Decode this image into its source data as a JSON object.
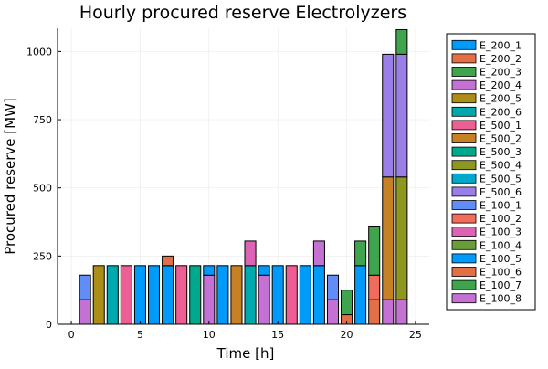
{
  "chart_data": {
    "type": "bar",
    "stacked": true,
    "title": "Hourly procured reserve Electrolyzers",
    "xlabel": "Time [h]",
    "ylabel": "Procured reserve [MW]",
    "xlim": [
      -1,
      26
    ],
    "ylim": [
      0,
      1085
    ],
    "xticks": [
      0,
      5,
      10,
      15,
      20,
      25
    ],
    "yticks": [
      0,
      250,
      500,
      750,
      1000
    ],
    "grid": true,
    "legend_position": "right",
    "hours": [
      1,
      2,
      3,
      4,
      5,
      6,
      7,
      8,
      9,
      10,
      11,
      12,
      13,
      14,
      15,
      16,
      17,
      18,
      19,
      20,
      21,
      22,
      23,
      24
    ],
    "series": [
      {
        "name": "E_200_1",
        "color": "#009AFA",
        "values": [
          0,
          0,
          0,
          0,
          215,
          215,
          215,
          0,
          0,
          0,
          0,
          0,
          0,
          0,
          0,
          0,
          0,
          215,
          0,
          0,
          0,
          0,
          0,
          0
        ]
      },
      {
        "name": "E_200_2",
        "color": "#E36F47",
        "values": [
          0,
          0,
          0,
          0,
          0,
          0,
          35,
          0,
          0,
          0,
          0,
          0,
          0,
          0,
          0,
          0,
          0,
          0,
          0,
          35,
          0,
          90,
          0,
          0
        ]
      },
      {
        "name": "E_200_3",
        "color": "#3EA44E",
        "values": [
          0,
          0,
          0,
          0,
          0,
          0,
          0,
          0,
          0,
          0,
          0,
          0,
          0,
          0,
          0,
          0,
          0,
          0,
          0,
          0,
          0,
          0,
          0,
          0
        ]
      },
      {
        "name": "E_200_4",
        "color": "#C371D2",
        "values": [
          90,
          0,
          0,
          0,
          0,
          0,
          0,
          0,
          0,
          180,
          0,
          0,
          0,
          180,
          0,
          0,
          0,
          90,
          90,
          0,
          0,
          0,
          90,
          90
        ]
      },
      {
        "name": "E_200_5",
        "color": "#AC8D18",
        "values": [
          0,
          215,
          0,
          0,
          0,
          0,
          0,
          0,
          0,
          0,
          0,
          0,
          0,
          0,
          0,
          0,
          0,
          0,
          0,
          0,
          0,
          0,
          0,
          0
        ]
      },
      {
        "name": "E_200_6",
        "color": "#00A9AD",
        "values": [
          0,
          0,
          215,
          0,
          0,
          0,
          0,
          0,
          0,
          0,
          0,
          0,
          215,
          0,
          0,
          0,
          0,
          0,
          0,
          0,
          0,
          0,
          0,
          0
        ]
      },
      {
        "name": "E_500_1",
        "color": "#ED5E93",
        "values": [
          0,
          0,
          0,
          215,
          0,
          0,
          0,
          215,
          0,
          0,
          0,
          0,
          0,
          0,
          0,
          215,
          0,
          0,
          0,
          0,
          0,
          0,
          0,
          0
        ]
      },
      {
        "name": "E_500_2",
        "color": "#C68125",
        "values": [
          0,
          0,
          0,
          0,
          0,
          0,
          0,
          0,
          0,
          0,
          0,
          215,
          0,
          0,
          0,
          0,
          0,
          0,
          0,
          0,
          0,
          0,
          450,
          0
        ]
      },
      {
        "name": "E_500_3",
        "color": "#00A98D",
        "values": [
          0,
          0,
          0,
          0,
          0,
          0,
          0,
          0,
          215,
          0,
          0,
          0,
          0,
          0,
          0,
          0,
          0,
          0,
          0,
          0,
          0,
          0,
          0,
          0
        ]
      },
      {
        "name": "E_500_4",
        "color": "#8E971E",
        "values": [
          0,
          0,
          0,
          0,
          0,
          0,
          0,
          0,
          0,
          0,
          0,
          0,
          0,
          0,
          0,
          0,
          0,
          0,
          0,
          0,
          0,
          0,
          0,
          450
        ]
      },
      {
        "name": "E_500_5",
        "color": "#00A8CB",
        "values": [
          0,
          0,
          0,
          0,
          0,
          0,
          0,
          0,
          0,
          0,
          0,
          0,
          0,
          0,
          0,
          0,
          0,
          0,
          0,
          0,
          0,
          0,
          0,
          0
        ]
      },
      {
        "name": "E_500_6",
        "color": "#9B7FE9",
        "values": [
          0,
          0,
          0,
          0,
          0,
          0,
          0,
          0,
          0,
          0,
          0,
          0,
          0,
          0,
          0,
          0,
          0,
          0,
          0,
          0,
          0,
          0,
          450,
          450
        ]
      },
      {
        "name": "E_100_1",
        "color": "#618DF6",
        "values": [
          90,
          0,
          0,
          0,
          0,
          0,
          0,
          0,
          0,
          0,
          0,
          0,
          0,
          0,
          0,
          0,
          0,
          0,
          90,
          0,
          0,
          0,
          0,
          0
        ]
      },
      {
        "name": "E_100_2",
        "color": "#F16C5D",
        "values": [
          0,
          0,
          0,
          0,
          0,
          0,
          0,
          0,
          0,
          0,
          0,
          0,
          0,
          0,
          0,
          0,
          0,
          0,
          0,
          0,
          0,
          90,
          0,
          0
        ]
      },
      {
        "name": "E_100_3",
        "color": "#DD64B5",
        "values": [
          0,
          0,
          0,
          0,
          0,
          0,
          0,
          0,
          0,
          0,
          0,
          0,
          90,
          0,
          0,
          0,
          0,
          0,
          0,
          0,
          0,
          0,
          0,
          0
        ]
      },
      {
        "name": "E_100_4",
        "color": "#6B9D3A",
        "values": [
          0,
          0,
          0,
          0,
          0,
          0,
          0,
          0,
          0,
          0,
          0,
          0,
          0,
          0,
          0,
          0,
          0,
          0,
          0,
          0,
          0,
          0,
          0,
          0
        ]
      },
      {
        "name": "E_100_5",
        "color": "#009AFA",
        "values": [
          0,
          0,
          0,
          0,
          0,
          0,
          0,
          0,
          0,
          35,
          215,
          0,
          0,
          35,
          215,
          0,
          215,
          0,
          0,
          0,
          215,
          0,
          0,
          0
        ]
      },
      {
        "name": "E_100_6",
        "color": "#E36F47",
        "values": [
          0,
          0,
          0,
          0,
          0,
          0,
          0,
          0,
          0,
          0,
          0,
          0,
          0,
          0,
          0,
          0,
          0,
          0,
          0,
          0,
          0,
          0,
          0,
          0
        ]
      },
      {
        "name": "E_100_7",
        "color": "#3EA44E",
        "values": [
          0,
          0,
          0,
          0,
          0,
          0,
          0,
          0,
          0,
          0,
          0,
          0,
          0,
          0,
          0,
          0,
          0,
          0,
          0,
          90,
          90,
          180,
          0,
          90
        ]
      },
      {
        "name": "E_100_8",
        "color": "#C371D2",
        "values": [
          0,
          0,
          0,
          0,
          0,
          0,
          0,
          0,
          0,
          0,
          0,
          0,
          0,
          0,
          0,
          0,
          0,
          0,
          0,
          0,
          0,
          0,
          0,
          0
        ]
      }
    ]
  }
}
